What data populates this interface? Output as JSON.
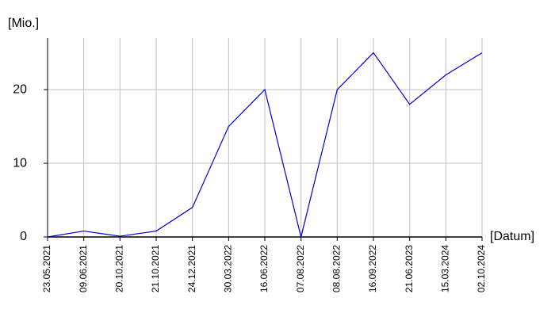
{
  "chart_data": {
    "type": "line",
    "y_label": "[Mio.]",
    "x_label": "[Datum]",
    "categories": [
      "23.05.2021",
      "09.06.2021",
      "20.10.2021",
      "21.10.2021",
      "24.12.2021",
      "30.03.2022",
      "16.06.2022",
      "07.08.2022",
      "08.08.2022",
      "16.09.2022",
      "21.06.2023",
      "15.03.2024",
      "02.10.2024"
    ],
    "series": [
      {
        "name": "Mio.",
        "color": "#0000cc",
        "values": [
          0,
          0.8,
          0.1,
          0.8,
          4,
          15,
          20,
          0,
          20,
          25,
          18,
          22,
          25
        ]
      }
    ],
    "ylim": [
      0,
      27
    ],
    "yticks": [
      0,
      10,
      20
    ],
    "grid": true
  }
}
